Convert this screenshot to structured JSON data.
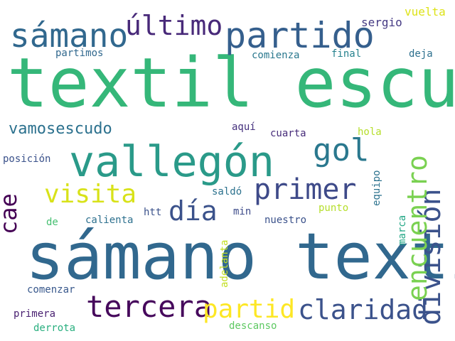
{
  "wordcloud": {
    "background": "#ffffff",
    "words": [
      {
        "text": "textil escudo",
        "color": "#35b779"
      },
      {
        "text": "sámano textil",
        "color": "#31688e"
      },
      {
        "text": "vallegón",
        "color": "#2a9a89"
      },
      {
        "text": "partido",
        "color": "#355f8d"
      },
      {
        "text": "sámano",
        "color": "#31688e"
      },
      {
        "text": "último",
        "color": "#482979"
      },
      {
        "text": "gol",
        "color": "#2a788e"
      },
      {
        "text": "tercera",
        "color": "#46085c"
      },
      {
        "text": "claridad",
        "color": "#3b528b"
      },
      {
        "text": "primer",
        "color": "#3e4a89"
      },
      {
        "text": "visita",
        "color": "#d8e219"
      },
      {
        "text": "día",
        "color": "#3b528b"
      },
      {
        "text": "partid",
        "color": "#fde725"
      },
      {
        "text": "división",
        "color": "#3b528b"
      },
      {
        "text": "encuentro",
        "color": "#7ad151"
      },
      {
        "text": "cae",
        "color": "#440154"
      },
      {
        "text": "vamosescudo",
        "color": "#2c718e"
      },
      {
        "text": "sergio",
        "color": "#443983"
      },
      {
        "text": "vuelta",
        "color": "#dde318"
      },
      {
        "text": "partimos",
        "color": "#31688e"
      },
      {
        "text": "comienza",
        "color": "#2a788e"
      },
      {
        "text": "final",
        "color": "#26828e"
      },
      {
        "text": "deja",
        "color": "#2d708e"
      },
      {
        "text": "aquí",
        "color": "#46327e"
      },
      {
        "text": "cuarta",
        "color": "#472c7a"
      },
      {
        "text": "hola",
        "color": "#b5de2b"
      },
      {
        "text": "posición",
        "color": "#3b528b"
      },
      {
        "text": "equipo",
        "color": "#2c728e"
      },
      {
        "text": "saldó",
        "color": "#2c728e"
      },
      {
        "text": "punto",
        "color": "#b5de2b"
      },
      {
        "text": "marca",
        "color": "#21a685"
      },
      {
        "text": "de",
        "color": "#44bf70"
      },
      {
        "text": "calienta",
        "color": "#2d708e"
      },
      {
        "text": "htt",
        "color": "#3b528b"
      },
      {
        "text": "min",
        "color": "#3e4c8a"
      },
      {
        "text": "nuestro",
        "color": "#3b528b"
      },
      {
        "text": "adelanta",
        "color": "#c2df23"
      },
      {
        "text": "comenzar",
        "color": "#38588c"
      },
      {
        "text": "primera",
        "color": "#481f70"
      },
      {
        "text": "derrota",
        "color": "#29af7f"
      },
      {
        "text": "descanso",
        "color": "#5ec962"
      }
    ]
  }
}
